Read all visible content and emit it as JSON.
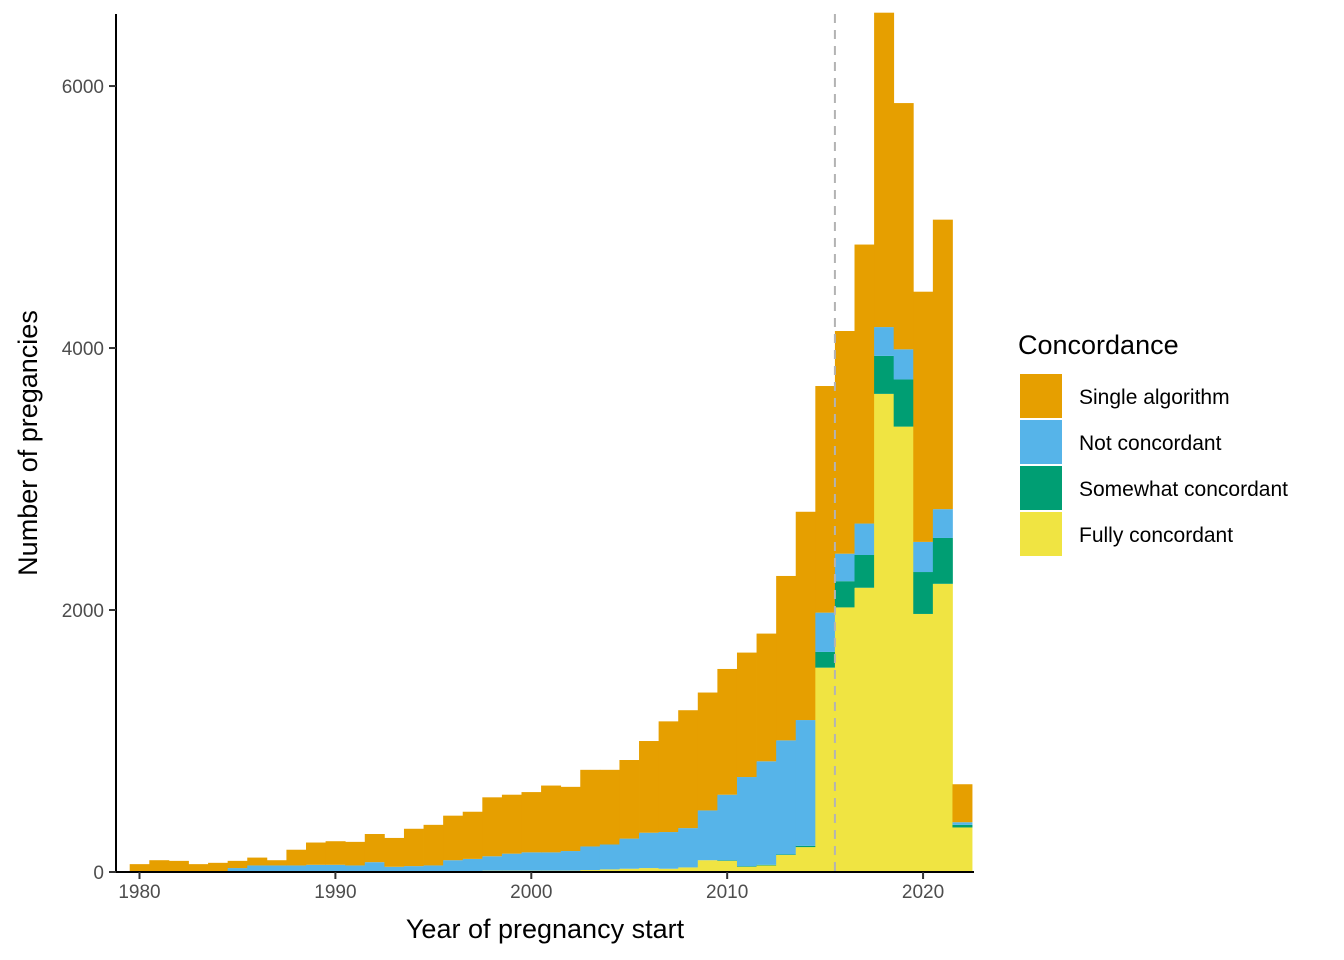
{
  "chart_data": {
    "type": "bar",
    "stacked": true,
    "xlabel": "Year of pregnancy start",
    "ylabel": "Number of pregancies",
    "xlim": [
      1978.8,
      2022.6
    ],
    "ylim": [
      0,
      6550
    ],
    "x_ticks": [
      1980,
      1990,
      2000,
      2010,
      2020
    ],
    "y_ticks": [
      0,
      2000,
      4000,
      6000
    ],
    "reference_line": {
      "x": 2015.5,
      "style": "dashed",
      "color": "#b3b3b3"
    },
    "legend": {
      "title": "Concordance",
      "position": "right"
    },
    "categories": [
      1980,
      1981,
      1982,
      1983,
      1984,
      1985,
      1986,
      1987,
      1988,
      1989,
      1990,
      1991,
      1992,
      1993,
      1994,
      1995,
      1996,
      1997,
      1998,
      1999,
      2000,
      2001,
      2002,
      2003,
      2004,
      2005,
      2006,
      2007,
      2008,
      2009,
      2010,
      2011,
      2012,
      2013,
      2014,
      2015,
      2016,
      2017,
      2018,
      2019,
      2020,
      2021,
      2022
    ],
    "series": [
      {
        "name": "Fully concordant",
        "color": "#F0E442",
        "values": [
          0,
          0,
          0,
          0,
          0,
          0,
          0,
          0,
          0,
          0,
          0,
          0,
          0,
          0,
          0,
          0,
          0,
          0,
          10,
          10,
          10,
          10,
          10,
          15,
          20,
          25,
          30,
          25,
          35,
          90,
          85,
          40,
          50,
          130,
          190,
          1560,
          2020,
          2170,
          3650,
          3400,
          1970,
          2200,
          340
        ]
      },
      {
        "name": "Somewhat concordant",
        "color": "#009E73",
        "values": [
          0,
          0,
          0,
          0,
          0,
          0,
          0,
          0,
          0,
          0,
          0,
          0,
          0,
          0,
          0,
          0,
          0,
          0,
          0,
          0,
          0,
          0,
          0,
          0,
          0,
          0,
          0,
          0,
          0,
          0,
          5,
          5,
          5,
          5,
          10,
          120,
          200,
          250,
          290,
          360,
          320,
          350,
          20
        ]
      },
      {
        "name": "Not concordant",
        "color": "#56B4E9",
        "values": [
          0,
          0,
          0,
          0,
          0,
          30,
          50,
          50,
          50,
          55,
          55,
          50,
          75,
          40,
          45,
          50,
          90,
          100,
          110,
          130,
          140,
          140,
          150,
          180,
          190,
          230,
          270,
          280,
          300,
          380,
          500,
          680,
          790,
          870,
          960,
          300,
          210,
          240,
          220,
          230,
          230,
          220,
          20
        ]
      },
      {
        "name": "Single algorithm",
        "color": "#E69F00",
        "values": [
          60,
          90,
          85,
          60,
          70,
          55,
          60,
          40,
          120,
          170,
          180,
          180,
          215,
          220,
          285,
          310,
          340,
          360,
          450,
          450,
          460,
          510,
          490,
          585,
          570,
          600,
          700,
          845,
          900,
          900,
          960,
          950,
          975,
          1255,
          1590,
          1730,
          1700,
          2130,
          2400,
          1880,
          1910,
          2210,
          290
        ]
      }
    ]
  }
}
